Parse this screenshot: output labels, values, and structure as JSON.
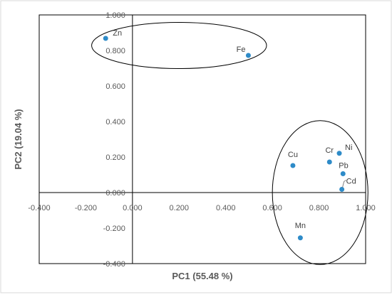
{
  "chart_data": {
    "type": "scatter",
    "title": "",
    "xlabel": "PC1 (55.48 %)",
    "ylabel": "PC2 (19.04 %)",
    "xlim": [
      -0.4,
      1.0
    ],
    "ylim": [
      -0.4,
      1.0
    ],
    "x_ticks": [
      "-0.400",
      "-0.200",
      "0.000",
      "0.200",
      "0.400",
      "0.600",
      "0.800",
      "1.000"
    ],
    "y_ticks": [
      "-0.400",
      "-0.200",
      "0.000",
      "0.200",
      "0.400",
      "0.600",
      "0.800",
      "1.000"
    ],
    "grid": false,
    "marker_color": "#2E8BC8",
    "points": [
      {
        "label": "Zn",
        "x": -0.115,
        "y": 0.868
      },
      {
        "label": "Fe",
        "x": 0.497,
        "y": 0.772
      },
      {
        "label": "Cu",
        "x": 0.688,
        "y": 0.152
      },
      {
        "label": "Cr",
        "x": 0.845,
        "y": 0.172
      },
      {
        "label": "Ni",
        "x": 0.887,
        "y": 0.221
      },
      {
        "label": "Pb",
        "x": 0.903,
        "y": 0.106
      },
      {
        "label": "Cd",
        "x": 0.898,
        "y": 0.018
      },
      {
        "label": "Mn",
        "x": 0.72,
        "y": -0.255
      }
    ],
    "groups": [
      {
        "members": [
          "Zn",
          "Fe"
        ],
        "cx": 0.2,
        "cy": 0.828,
        "rx": 0.375,
        "ry": 0.13
      },
      {
        "members": [
          "Cu",
          "Cr",
          "Ni",
          "Pb",
          "Cd",
          "Mn"
        ],
        "cx": 0.805,
        "cy": 0.0,
        "rx": 0.205,
        "ry": 0.405
      }
    ]
  }
}
